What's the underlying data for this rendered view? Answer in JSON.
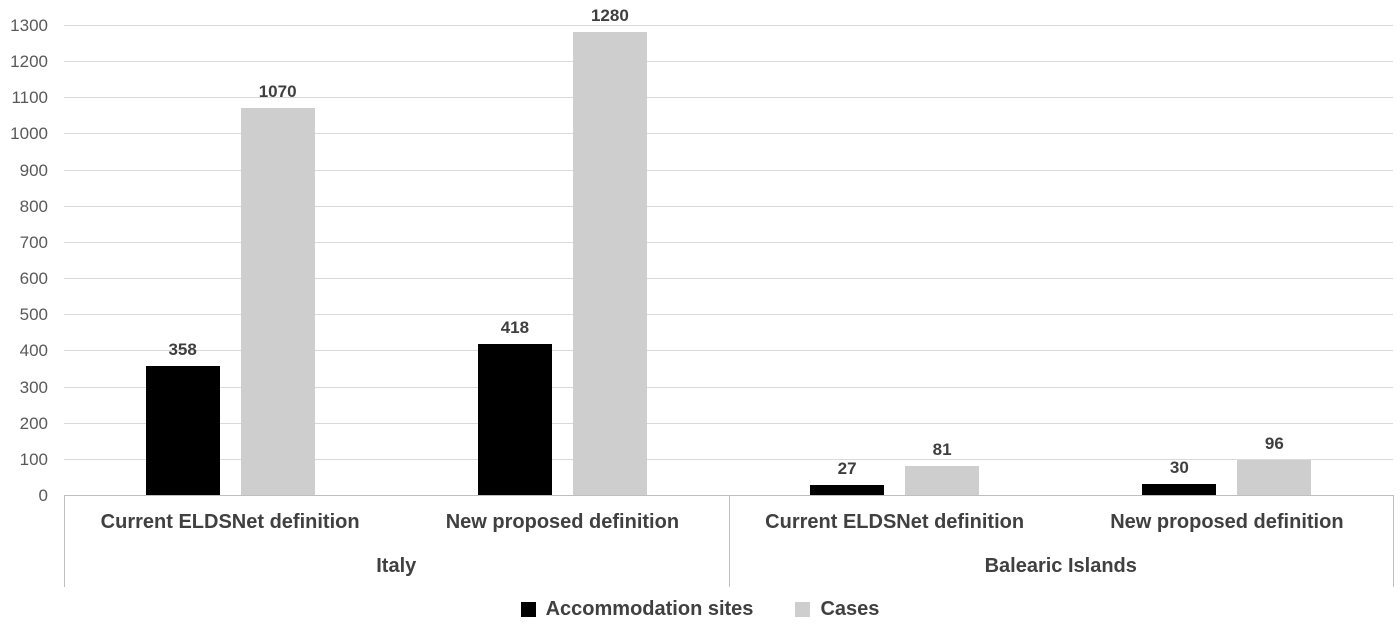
{
  "chart_data": {
    "type": "bar",
    "title": "",
    "xlabel": "",
    "ylabel": "",
    "groups": [
      {
        "label": "Italy",
        "categories": [
          "Current ELDSNet definition",
          "New proposed definition"
        ]
      },
      {
        "label": "Balearic Islands",
        "categories": [
          "Current ELDSNet definition",
          "New proposed definition"
        ]
      }
    ],
    "series": [
      {
        "name": "Accommodation sites",
        "color": "#000000",
        "values": [
          358,
          418,
          27,
          30
        ]
      },
      {
        "name": "Cases",
        "color": "#cecece",
        "values": [
          1070,
          1280,
          81,
          96
        ]
      }
    ],
    "data_labels_shown": true,
    "ylim": [
      0,
      1300
    ],
    "yticks": [
      0,
      100,
      200,
      300,
      400,
      500,
      600,
      700,
      800,
      900,
      1000,
      1100,
      1200,
      1300
    ],
    "grid": true,
    "legend_position": "bottom"
  },
  "style": {
    "background": "#ffffff",
    "gridline_color": "#d9d9d9",
    "axis_line_color": "#bfbfbf",
    "tick_label_color": "#595959",
    "data_label_color": "#3f3f3f",
    "category_label_color": "#404040",
    "legend_label_color": "#404040"
  }
}
